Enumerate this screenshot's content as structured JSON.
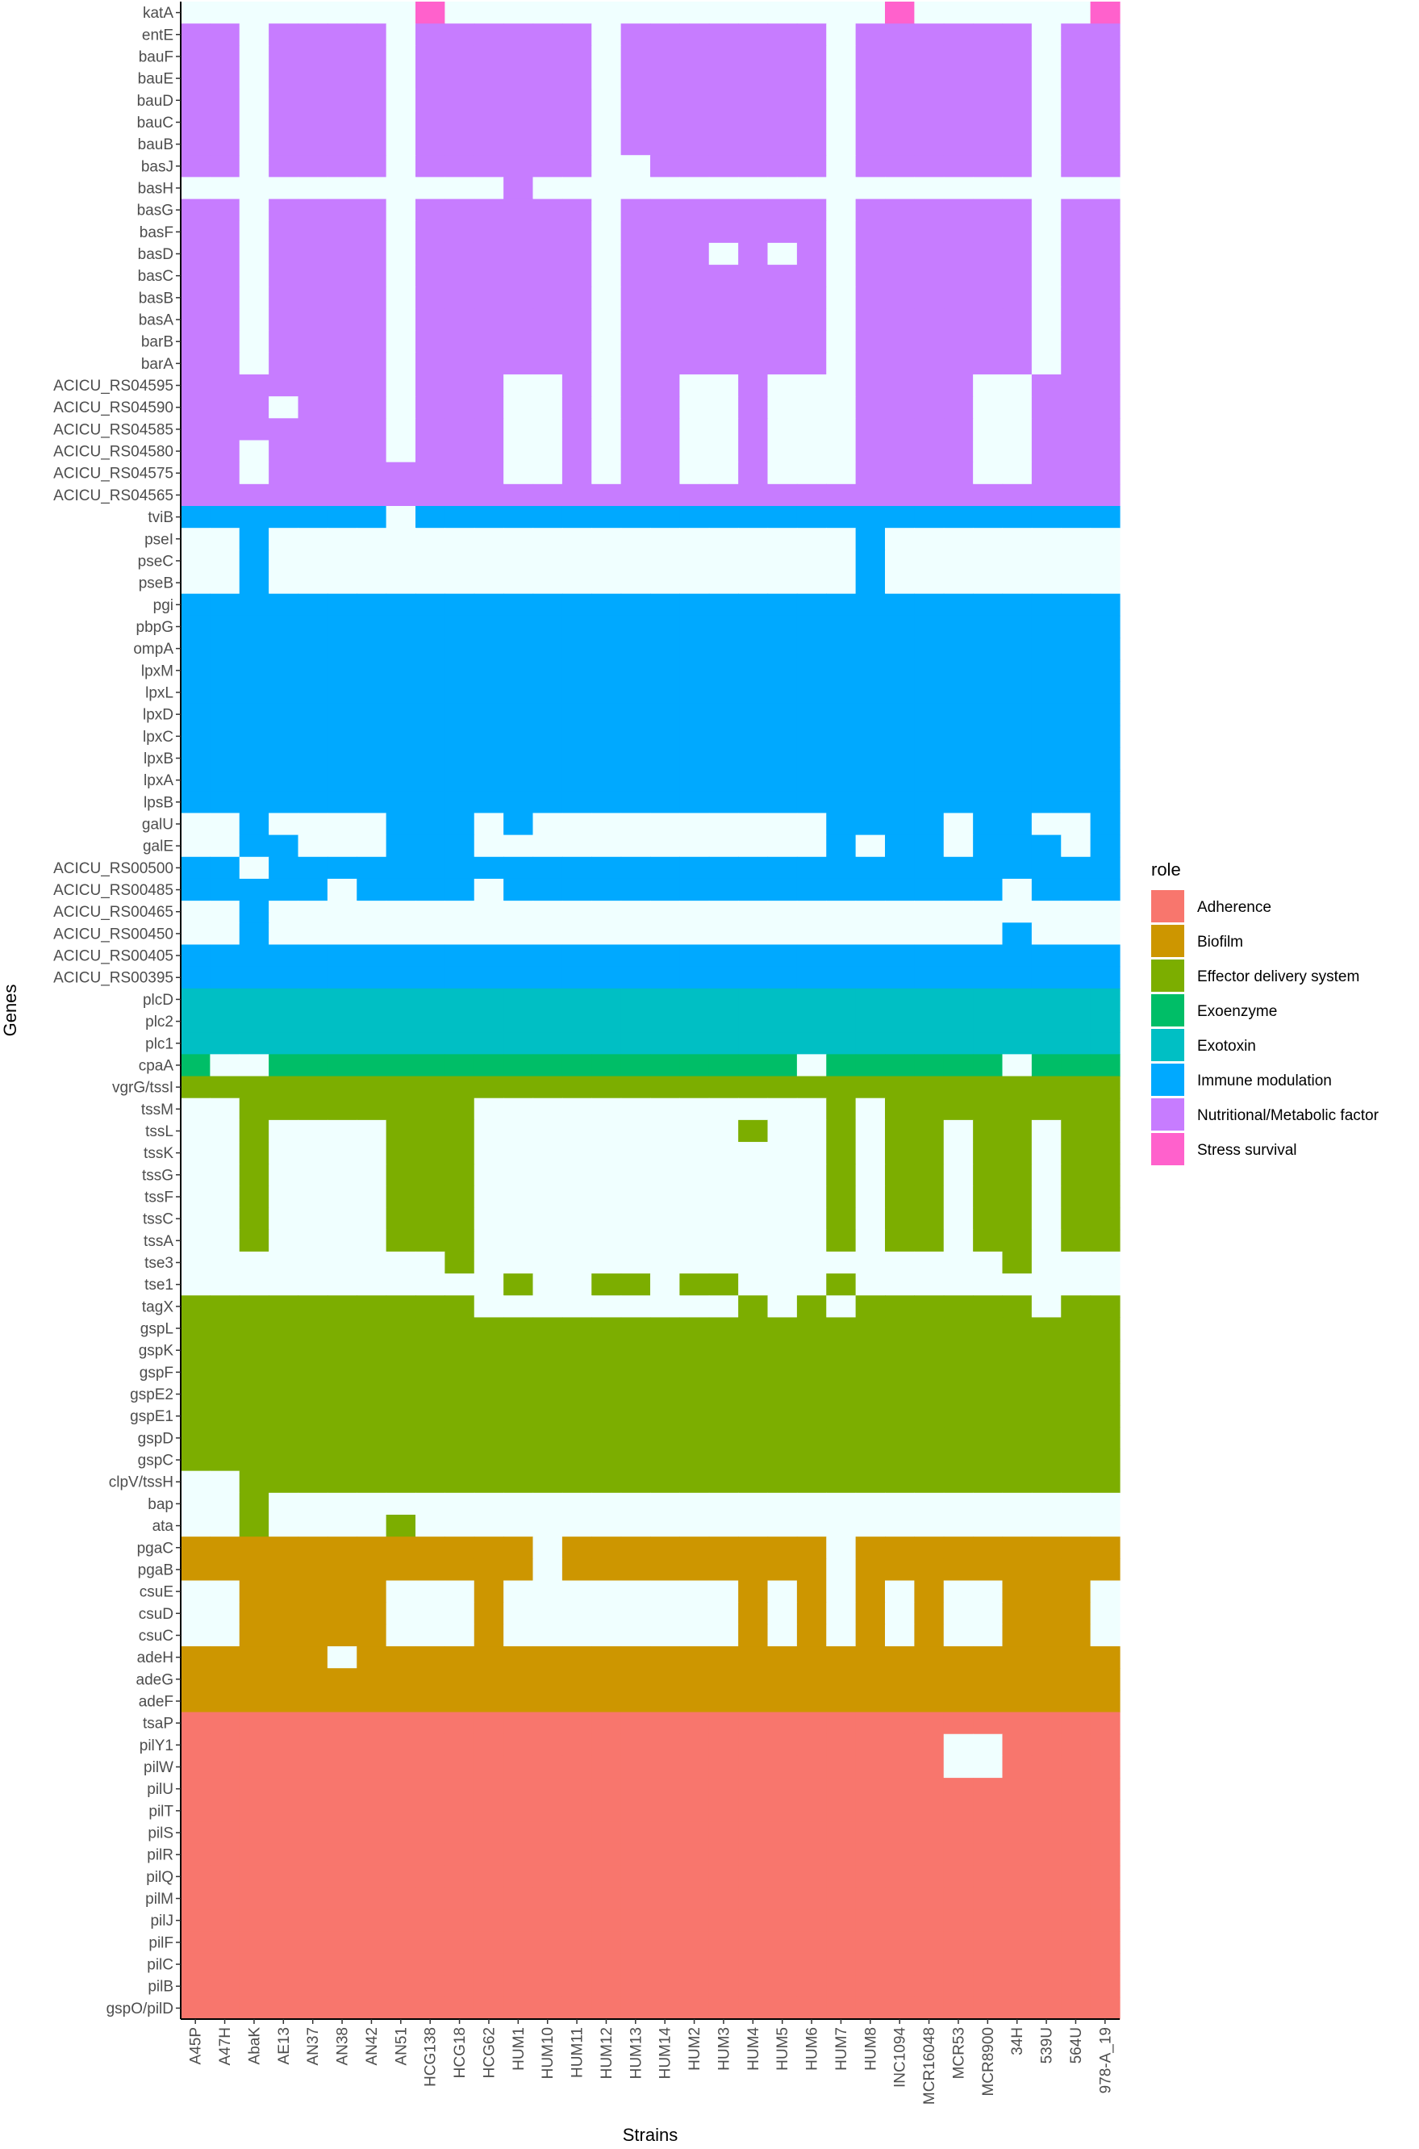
{
  "chart_data": {
    "type": "heatmap",
    "xlabel": "Strains",
    "ylabel": "Genes",
    "legend_title": "role",
    "legend_position": "right",
    "grid": false,
    "absent_color": "#f0ffff",
    "roles": [
      {
        "name": "Adherence",
        "color": "#f8766d"
      },
      {
        "name": "Biofilm",
        "color": "#cd9600"
      },
      {
        "name": "Effector delivery system",
        "color": "#7cae00"
      },
      {
        "name": "Exoenzyme",
        "color": "#00be67"
      },
      {
        "name": "Exotoxin",
        "color": "#00bfc4"
      },
      {
        "name": "Immune modulation",
        "color": "#00a9ff"
      },
      {
        "name": "Nutritional/Metabolic factor",
        "color": "#c77cff"
      },
      {
        "name": "Stress survival",
        "color": "#ff61cc"
      }
    ],
    "strains": [
      "A45P",
      "A47H",
      "AbaK",
      "AE13",
      "AN37",
      "AN38",
      "AN42",
      "AN51",
      "HCG138",
      "HCG18",
      "HCG62",
      "HUM1",
      "HUM10",
      "HUM11",
      "HUM12",
      "HUM13",
      "HUM14",
      "HUM2",
      "HUM3",
      "HUM4",
      "HUM5",
      "HUM6",
      "HUM7",
      "HUM8",
      "INC1094",
      "MCR16048",
      "MCR53",
      "MCR8900",
      "34H",
      "539U",
      "564U",
      "978-A_19"
    ],
    "genes": [
      {
        "name": "katA",
        "role": "Stress survival",
        "presence": "00000000100000000000000010000001"
      },
      {
        "name": "entE",
        "role": "Nutritional/Metabolic factor",
        "presence": "11011110111111011111110111111011"
      },
      {
        "name": "bauF",
        "role": "Nutritional/Metabolic factor",
        "presence": "11011110111111011111110111111011"
      },
      {
        "name": "bauE",
        "role": "Nutritional/Metabolic factor",
        "presence": "11011110111111011111110111111011"
      },
      {
        "name": "bauD",
        "role": "Nutritional/Metabolic factor",
        "presence": "11011110111111011111110111111011"
      },
      {
        "name": "bauC",
        "role": "Nutritional/Metabolic factor",
        "presence": "11011110111111011111110111111011"
      },
      {
        "name": "bauB",
        "role": "Nutritional/Metabolic factor",
        "presence": "11011110111111011111110111111011"
      },
      {
        "name": "basJ",
        "role": "Nutritional/Metabolic factor",
        "presence": "11011110111111001111110111111011"
      },
      {
        "name": "basH",
        "role": "Nutritional/Metabolic factor",
        "presence": "00000000000100000000000000000000"
      },
      {
        "name": "basG",
        "role": "Nutritional/Metabolic factor",
        "presence": "11011110111111011111110111111011"
      },
      {
        "name": "basF",
        "role": "Nutritional/Metabolic factor",
        "presence": "11011110111111011111110111111011"
      },
      {
        "name": "basD",
        "role": "Nutritional/Metabolic factor",
        "presence": "11011110111111011101010111111011"
      },
      {
        "name": "basC",
        "role": "Nutritional/Metabolic factor",
        "presence": "11011110111111011111110111111011"
      },
      {
        "name": "basB",
        "role": "Nutritional/Metabolic factor",
        "presence": "11011110111111011111110111111011"
      },
      {
        "name": "basA",
        "role": "Nutritional/Metabolic factor",
        "presence": "11011110111111011111110111111011"
      },
      {
        "name": "barB",
        "role": "Nutritional/Metabolic factor",
        "presence": "11011110111111011111110111111011"
      },
      {
        "name": "barA",
        "role": "Nutritional/Metabolic factor",
        "presence": "11011110111111011111110111111011"
      },
      {
        "name": "ACICU_RS04595",
        "role": "Nutritional/Metabolic factor",
        "presence": "11111110111001011001000111100111"
      },
      {
        "name": "ACICU_RS04590",
        "role": "Nutritional/Metabolic factor",
        "presence": "11101110111001011001000111100111"
      },
      {
        "name": "ACICU_RS04585",
        "role": "Nutritional/Metabolic factor",
        "presence": "11111110111001011001000111100111"
      },
      {
        "name": "ACICU_RS04580",
        "role": "Nutritional/Metabolic factor",
        "presence": "11011110111001011001000111100111"
      },
      {
        "name": "ACICU_RS04575",
        "role": "Nutritional/Metabolic factor",
        "presence": "11011111111001011001000111100111"
      },
      {
        "name": "ACICU_RS04565",
        "role": "Nutritional/Metabolic factor",
        "presence": "11111111111111111111111111111111"
      },
      {
        "name": "tviB",
        "role": "Immune modulation",
        "presence": "11111110111111111111111111111111"
      },
      {
        "name": "pseI",
        "role": "Immune modulation",
        "presence": "00100000000000000000000100000000"
      },
      {
        "name": "pseC",
        "role": "Immune modulation",
        "presence": "00100000000000000000000100000000"
      },
      {
        "name": "pseB",
        "role": "Immune modulation",
        "presence": "00100000000000000000000100000000"
      },
      {
        "name": "pgi",
        "role": "Immune modulation",
        "presence": "11111111111111111111111111111111"
      },
      {
        "name": "pbpG",
        "role": "Immune modulation",
        "presence": "11111111111111111111111111111111"
      },
      {
        "name": "ompA",
        "role": "Immune modulation",
        "presence": "11111111111111111111111111111111"
      },
      {
        "name": "lpxM",
        "role": "Immune modulation",
        "presence": "11111111111111111111111111111111"
      },
      {
        "name": "lpxL",
        "role": "Immune modulation",
        "presence": "11111111111111111111111111111111"
      },
      {
        "name": "lpxD",
        "role": "Immune modulation",
        "presence": "11111111111111111111111111111111"
      },
      {
        "name": "lpxC",
        "role": "Immune modulation",
        "presence": "11111111111111111111111111111111"
      },
      {
        "name": "lpxB",
        "role": "Immune modulation",
        "presence": "11111111111111111111111111111111"
      },
      {
        "name": "lpxA",
        "role": "Immune modulation",
        "presence": "11111111111111111111111111111111"
      },
      {
        "name": "lpsB",
        "role": "Immune modulation",
        "presence": "11111111111111111111111111111111"
      },
      {
        "name": "galU",
        "role": "Immune modulation",
        "presence": "00100001110100000000001111011001"
      },
      {
        "name": "galE",
        "role": "Immune modulation",
        "presence": "00110001110000000000001011011101"
      },
      {
        "name": "ACICU_RS00500",
        "role": "Immune modulation",
        "presence": "11011111111111111111111111111111"
      },
      {
        "name": "ACICU_RS00485",
        "role": "Immune modulation",
        "presence": "11111011110111111111111111110111"
      },
      {
        "name": "ACICU_RS00465",
        "role": "Immune modulation",
        "presence": "00100000000000000000000000000000"
      },
      {
        "name": "ACICU_RS00450",
        "role": "Immune modulation",
        "presence": "00100000000000000000000000001000"
      },
      {
        "name": "ACICU_RS00405",
        "role": "Immune modulation",
        "presence": "11111111111111111111111111111111"
      },
      {
        "name": "ACICU_RS00395",
        "role": "Immune modulation",
        "presence": "11111111111111111111111111111111"
      },
      {
        "name": "plcD",
        "role": "Exotoxin",
        "presence": "11111111111111111111111111111111"
      },
      {
        "name": "plc2",
        "role": "Exotoxin",
        "presence": "11111111111111111111111111111111"
      },
      {
        "name": "plc1",
        "role": "Exotoxin",
        "presence": "11111111111111111111111111111111"
      },
      {
        "name": "cpaA",
        "role": "Exoenzyme",
        "presence": "10011111111111111111101111110111"
      },
      {
        "name": "vgrG/tssI",
        "role": "Effector delivery system",
        "presence": "11111111111111111111111111111111"
      },
      {
        "name": "tssM",
        "role": "Effector delivery system",
        "presence": "00111111110000000000001011111111"
      },
      {
        "name": "tssL",
        "role": "Effector delivery system",
        "presence": "00100001110000000001001011011011"
      },
      {
        "name": "tssK",
        "role": "Effector delivery system",
        "presence": "00100001110000000000001011011011"
      },
      {
        "name": "tssG",
        "role": "Effector delivery system",
        "presence": "00100001110000000000001011011011"
      },
      {
        "name": "tssF",
        "role": "Effector delivery system",
        "presence": "00100001110000000000001011011011"
      },
      {
        "name": "tssC",
        "role": "Effector delivery system",
        "presence": "00100001110000000000001011011011"
      },
      {
        "name": "tssA",
        "role": "Effector delivery system",
        "presence": "00100001110000000000001011011011"
      },
      {
        "name": "tse3",
        "role": "Effector delivery system",
        "presence": "00000000010000000000000000001000"
      },
      {
        "name": "tse1",
        "role": "Effector delivery system",
        "presence": "00000000000100110110001000000000"
      },
      {
        "name": "tagX",
        "role": "Effector delivery system",
        "presence": "11111111110000000001010111111011"
      },
      {
        "name": "gspL",
        "role": "Effector delivery system",
        "presence": "11111111111111111111111111111111"
      },
      {
        "name": "gspK",
        "role": "Effector delivery system",
        "presence": "11111111111111111111111111111111"
      },
      {
        "name": "gspF",
        "role": "Effector delivery system",
        "presence": "11111111111111111111111111111111"
      },
      {
        "name": "gspE2",
        "role": "Effector delivery system",
        "presence": "11111111111111111111111111111111"
      },
      {
        "name": "gspE1",
        "role": "Effector delivery system",
        "presence": "11111111111111111111111111111111"
      },
      {
        "name": "gspD",
        "role": "Effector delivery system",
        "presence": "11111111111111111111111111111111"
      },
      {
        "name": "gspC",
        "role": "Effector delivery system",
        "presence": "11111111111111111111111111111111"
      },
      {
        "name": "clpV/tssH",
        "role": "Effector delivery system",
        "presence": "00111111111111111111111111111111"
      },
      {
        "name": "bap",
        "role": "Effector delivery system",
        "presence": "00100000000000000000000000000000"
      },
      {
        "name": "ata",
        "role": "Effector delivery system",
        "presence": "00100001000000000000000000000000"
      },
      {
        "name": "pgaC",
        "role": "Biofilm",
        "presence": "11111111111101111111110111111111"
      },
      {
        "name": "pgaB",
        "role": "Biofilm",
        "presence": "11111111111101111111110111111111"
      },
      {
        "name": "csuE",
        "role": "Biofilm",
        "presence": "00111110001000000001010101001110"
      },
      {
        "name": "csuD",
        "role": "Biofilm",
        "presence": "00111110001000000001010101001110"
      },
      {
        "name": "csuC",
        "role": "Biofilm",
        "presence": "00111110001000000001010101001110"
      },
      {
        "name": "adeH",
        "role": "Biofilm",
        "presence": "11111011111111111111111111111111"
      },
      {
        "name": "adeG",
        "role": "Biofilm",
        "presence": "11111111111111111111111111111111"
      },
      {
        "name": "adeF",
        "role": "Biofilm",
        "presence": "11111111111111111111111111111111"
      },
      {
        "name": "tsaP",
        "role": "Adherence",
        "presence": "11111111111111111111111111111111"
      },
      {
        "name": "pilY1",
        "role": "Adherence",
        "presence": "11111111111111111111111111001111"
      },
      {
        "name": "pilW",
        "role": "Adherence",
        "presence": "11111111111111111111111111001111"
      },
      {
        "name": "pilU",
        "role": "Adherence",
        "presence": "11111111111111111111111111111111"
      },
      {
        "name": "pilT",
        "role": "Adherence",
        "presence": "11111111111111111111111111111111"
      },
      {
        "name": "pilS",
        "role": "Adherence",
        "presence": "11111111111111111111111111111111"
      },
      {
        "name": "pilR",
        "role": "Adherence",
        "presence": "11111111111111111111111111111111"
      },
      {
        "name": "pilQ",
        "role": "Adherence",
        "presence": "11111111111111111111111111111111"
      },
      {
        "name": "pilM",
        "role": "Adherence",
        "presence": "11111111111111111111111111111111"
      },
      {
        "name": "pilJ",
        "role": "Adherence",
        "presence": "11111111111111111111111111111111"
      },
      {
        "name": "pilF",
        "role": "Adherence",
        "presence": "11111111111111111111111111111111"
      },
      {
        "name": "pilC",
        "role": "Adherence",
        "presence": "11111111111111111111111111111111"
      },
      {
        "name": "pilB",
        "role": "Adherence",
        "presence": "11111111111111111111111111111111"
      },
      {
        "name": "gspO/pilD",
        "role": "Adherence",
        "presence": "11111111111111111111111111111111"
      }
    ]
  }
}
